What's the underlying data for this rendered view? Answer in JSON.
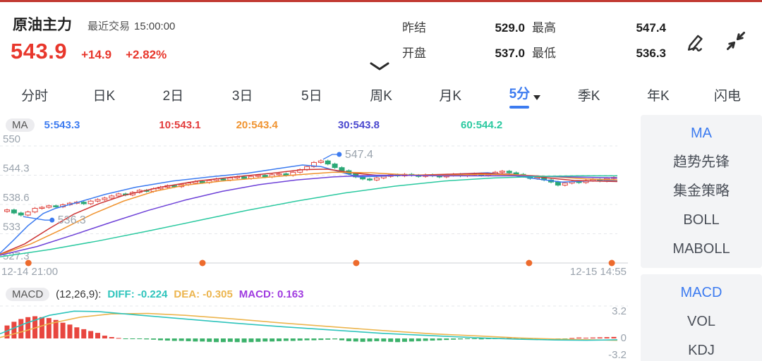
{
  "colors": {
    "up_red": "#e0453f",
    "down_green": "#2aa876",
    "accent_blue": "#3c7bf0",
    "price_red": "#e8372c",
    "session_dot_orange": "#ed6b2d",
    "axis_gray": "#9aa3ad"
  },
  "header": {
    "symbol": "原油主力",
    "last_trade_label": "最近交易",
    "last_trade_time": "15:00:00",
    "price": "543.9",
    "change": "+14.9",
    "change_pct": "+2.82%",
    "stats": [
      {
        "label": "昨结",
        "value": "529.0"
      },
      {
        "label": "最高",
        "value": "547.4"
      },
      {
        "label": "开盘",
        "value": "537.0"
      },
      {
        "label": "最低",
        "value": "536.3"
      }
    ],
    "icons": {
      "draw": "pen-icon",
      "shrink": "collapse-arrows-icon",
      "panel_toggle": "chevron-down-icon"
    }
  },
  "tabs": {
    "items": [
      {
        "label": "分时"
      },
      {
        "label": "日K"
      },
      {
        "label": "2日"
      },
      {
        "label": "3日"
      },
      {
        "label": "5日"
      },
      {
        "label": "周K"
      },
      {
        "label": "月K"
      },
      {
        "label": "5分",
        "active": true
      },
      {
        "label": "季K"
      },
      {
        "label": "年K"
      },
      {
        "label": "闪电"
      }
    ]
  },
  "sidebar": {
    "main_indicators": [
      "MA",
      "趋势先锋",
      "集金策略",
      "BOLL",
      "MABOLL"
    ],
    "active_main": "MA",
    "sub_indicators": [
      "MACD",
      "VOL",
      "KDJ"
    ],
    "active_sub": "MACD"
  },
  "chart_data": {
    "type": "candlestick+macd",
    "period": "5分",
    "ma_legend_prefix": "MA",
    "ma": [
      {
        "label": "5:543.3",
        "period": 5,
        "value": 543.3,
        "color": "#3c7bf0"
      },
      {
        "label": "10:543.1",
        "period": 10,
        "value": 543.1,
        "color": "#e23b3b"
      },
      {
        "label": "20:543.4",
        "period": 20,
        "value": 543.4,
        "color": "#f0932f"
      },
      {
        "label": "30:543.8",
        "period": 30,
        "value": 543.8,
        "color": "#4a48cf"
      },
      {
        "label": "60:544.2",
        "period": 60,
        "value": 544.2,
        "color": "#2bc9a0"
      }
    ],
    "y_axis": {
      "labels": [
        "550",
        "544.3",
        "538.6",
        "533",
        "527.3"
      ],
      "max": 550,
      "min": 527.3
    },
    "x_axis": {
      "start_label": "12-14 21:00",
      "end_label": "12-15 14:55",
      "session_dot_fracs": [
        0.046,
        0.328,
        0.577,
        0.857,
        0.991
      ]
    },
    "annotations": {
      "low": {
        "index": 2,
        "value": 536.3,
        "label": "536.3"
      },
      "high": {
        "index": 45,
        "value": 547.4,
        "label": "547.4"
      }
    },
    "candles": {
      "closes": [
        537.6,
        537.0,
        536.6,
        537.2,
        537.9,
        538.1,
        538.4,
        538.2,
        538.6,
        538.9,
        539.1,
        538.8,
        539.3,
        539.6,
        539.9,
        540.3,
        540.7,
        540.5,
        541.0,
        541.4,
        541.2,
        541.7,
        542.0,
        542.3,
        542.1,
        542.5,
        542.8,
        543.1,
        542.9,
        543.3,
        543.6,
        543.4,
        543.8,
        544.0,
        543.7,
        544.1,
        544.3,
        544.0,
        544.4,
        544.6,
        544.3,
        544.9,
        545.4,
        546.0,
        546.8,
        547.1,
        546.5,
        545.8,
        545.2,
        544.6,
        544.0,
        543.6,
        543.4,
        543.8,
        544.1,
        544.4,
        544.2,
        544.5,
        544.3,
        544.1,
        544.4,
        544.2,
        544.0,
        544.3,
        544.5,
        544.2,
        544.4,
        544.6,
        544.3,
        544.6,
        544.9,
        545.1,
        544.8,
        544.5,
        544.1,
        543.7,
        543.9,
        543.4,
        543.0,
        542.4,
        542.8,
        543.1,
        542.9,
        543.3,
        543.5,
        543.2,
        543.7,
        543.9
      ]
    },
    "ma_lines": [
      {
        "name": "MA5",
        "color": "#3c7bf0",
        "points": [
          [
            0,
            529.2
          ],
          [
            0.02,
            531.5
          ],
          [
            0.045,
            534.5
          ],
          [
            0.07,
            536.9
          ],
          [
            0.09,
            537.9
          ],
          [
            0.13,
            539.2
          ],
          [
            0.17,
            540.6
          ],
          [
            0.22,
            542.0
          ],
          [
            0.28,
            543.2
          ],
          [
            0.34,
            544.0
          ],
          [
            0.4,
            544.7
          ],
          [
            0.45,
            545.6
          ],
          [
            0.49,
            546.3
          ],
          [
            0.52,
            546.0
          ],
          [
            0.55,
            545.0
          ],
          [
            0.58,
            544.0
          ],
          [
            0.61,
            544.1
          ],
          [
            0.65,
            544.3
          ],
          [
            0.7,
            544.3
          ],
          [
            0.75,
            544.6
          ],
          [
            0.79,
            544.8
          ],
          [
            0.83,
            544.3
          ],
          [
            0.87,
            543.6
          ],
          [
            0.91,
            543.0
          ],
          [
            0.95,
            543.2
          ],
          [
            1,
            543.3
          ]
        ]
      },
      {
        "name": "MA10",
        "color": "#cc3333",
        "points": [
          [
            0,
            529.0
          ],
          [
            0.04,
            531.0
          ],
          [
            0.08,
            534.0
          ],
          [
            0.12,
            536.8
          ],
          [
            0.16,
            538.8
          ],
          [
            0.2,
            540.4
          ],
          [
            0.26,
            542.0
          ],
          [
            0.32,
            543.2
          ],
          [
            0.38,
            544.0
          ],
          [
            0.44,
            544.7
          ],
          [
            0.49,
            545.4
          ],
          [
            0.53,
            545.5
          ],
          [
            0.57,
            544.8
          ],
          [
            0.61,
            544.3
          ],
          [
            0.66,
            544.3
          ],
          [
            0.72,
            544.5
          ],
          [
            0.78,
            544.7
          ],
          [
            0.83,
            544.5
          ],
          [
            0.88,
            543.9
          ],
          [
            0.93,
            543.3
          ],
          [
            1,
            543.1
          ]
        ]
      },
      {
        "name": "MA20",
        "color": "#f0932f",
        "points": [
          [
            0,
            528.9
          ],
          [
            0.05,
            531.0
          ],
          [
            0.1,
            533.8
          ],
          [
            0.15,
            536.8
          ],
          [
            0.2,
            539.3
          ],
          [
            0.25,
            541.2
          ],
          [
            0.3,
            542.4
          ],
          [
            0.36,
            543.2
          ],
          [
            0.42,
            543.8
          ],
          [
            0.48,
            544.4
          ],
          [
            0.54,
            544.9
          ],
          [
            0.6,
            544.8
          ],
          [
            0.66,
            544.4
          ],
          [
            0.72,
            544.3
          ],
          [
            0.78,
            544.5
          ],
          [
            0.84,
            544.4
          ],
          [
            0.9,
            544.0
          ],
          [
            0.95,
            543.6
          ],
          [
            1,
            543.4
          ]
        ]
      },
      {
        "name": "MA30",
        "color": "#6e42d8",
        "points": [
          [
            0,
            528.8
          ],
          [
            0.06,
            530.5
          ],
          [
            0.12,
            532.8
          ],
          [
            0.18,
            535.2
          ],
          [
            0.24,
            537.5
          ],
          [
            0.3,
            539.5
          ],
          [
            0.36,
            541.2
          ],
          [
            0.42,
            542.5
          ],
          [
            0.48,
            543.4
          ],
          [
            0.54,
            544.0
          ],
          [
            0.6,
            544.3
          ],
          [
            0.66,
            544.3
          ],
          [
            0.72,
            544.2
          ],
          [
            0.78,
            544.2
          ],
          [
            0.84,
            544.2
          ],
          [
            0.92,
            544.0
          ],
          [
            1,
            543.8
          ]
        ]
      },
      {
        "name": "MA60",
        "color": "#2bc9a0",
        "points": [
          [
            0,
            528.5
          ],
          [
            0.08,
            529.9
          ],
          [
            0.16,
            531.6
          ],
          [
            0.24,
            533.5
          ],
          [
            0.32,
            535.5
          ],
          [
            0.4,
            537.5
          ],
          [
            0.48,
            539.3
          ],
          [
            0.56,
            540.9
          ],
          [
            0.64,
            542.2
          ],
          [
            0.72,
            543.2
          ],
          [
            0.8,
            543.8
          ],
          [
            0.88,
            544.1
          ],
          [
            0.94,
            544.2
          ],
          [
            1,
            544.2
          ]
        ]
      }
    ],
    "macd": {
      "indicator": "MACD",
      "params": "(12,26,9):",
      "diff": {
        "label": "DIFF: -0.224",
        "value": -0.224,
        "color": "#2fc4bc"
      },
      "dea": {
        "label": "DEA: -0.305",
        "value": -0.305,
        "color": "#ecb54e"
      },
      "macd": {
        "label": "MACD: 0.163",
        "value": 0.163,
        "color": "#a03ce0"
      },
      "y_labels": [
        "3.2",
        "0",
        "-3.2"
      ],
      "ylim": [
        -3.2,
        3.2
      ],
      "hist": [
        1.4,
        1.8,
        2.1,
        2.3,
        2.4,
        2.3,
        2.2,
        2.0,
        1.7,
        1.5,
        1.2,
        1.0,
        0.8,
        0.6,
        0.3,
        0.15,
        0.05,
        -0.05,
        -0.1,
        -0.1,
        -0.15,
        -0.2,
        -0.3,
        -0.35,
        -0.4,
        -0.4,
        -0.45,
        -0.5,
        -0.5,
        -0.55,
        -0.6,
        -0.6,
        -0.55,
        -0.6,
        -0.65,
        -0.6,
        -0.55,
        -0.5,
        -0.5,
        -0.45,
        -0.4,
        -0.4,
        -0.35,
        -0.3,
        -0.3,
        -0.25,
        -0.2,
        -0.15,
        -0.3,
        -0.45,
        -0.5,
        -0.55,
        -0.5,
        -0.45,
        -0.5,
        -0.55,
        -0.6,
        -0.55,
        -0.5,
        -0.45,
        -0.4,
        -0.35,
        -0.3,
        -0.25,
        -0.2,
        -0.15,
        -0.1,
        -0.1,
        -0.15,
        -0.1,
        -0.05,
        0.05,
        0.1,
        0.05,
        -0.05,
        -0.1,
        -0.15,
        -0.2,
        -0.25,
        -0.2,
        -0.1,
        0.05,
        0.1,
        0.08,
        0.1,
        0.12,
        0.14,
        0.163
      ],
      "diff_points": [
        [
          0,
          0.5
        ],
        [
          0.04,
          1.6
        ],
        [
          0.08,
          2.5
        ],
        [
          0.12,
          2.95
        ],
        [
          0.16,
          2.9
        ],
        [
          0.22,
          2.55
        ],
        [
          0.3,
          2.1
        ],
        [
          0.38,
          1.65
        ],
        [
          0.46,
          1.25
        ],
        [
          0.54,
          0.9
        ],
        [
          0.62,
          0.55
        ],
        [
          0.7,
          0.3
        ],
        [
          0.78,
          0.05
        ],
        [
          0.84,
          -0.12
        ],
        [
          0.9,
          -0.25
        ],
        [
          0.95,
          -0.3
        ],
        [
          1,
          -0.224
        ]
      ],
      "dea_points": [
        [
          0,
          0.1
        ],
        [
          0.04,
          0.8
        ],
        [
          0.08,
          1.6
        ],
        [
          0.13,
          2.3
        ],
        [
          0.18,
          2.65
        ],
        [
          0.24,
          2.7
        ],
        [
          0.3,
          2.5
        ],
        [
          0.38,
          2.1
        ],
        [
          0.46,
          1.65
        ],
        [
          0.54,
          1.25
        ],
        [
          0.62,
          0.85
        ],
        [
          0.7,
          0.5
        ],
        [
          0.78,
          0.25
        ],
        [
          0.84,
          0.05
        ],
        [
          0.9,
          -0.1
        ],
        [
          0.95,
          -0.2
        ],
        [
          1,
          -0.305
        ]
      ]
    }
  }
}
